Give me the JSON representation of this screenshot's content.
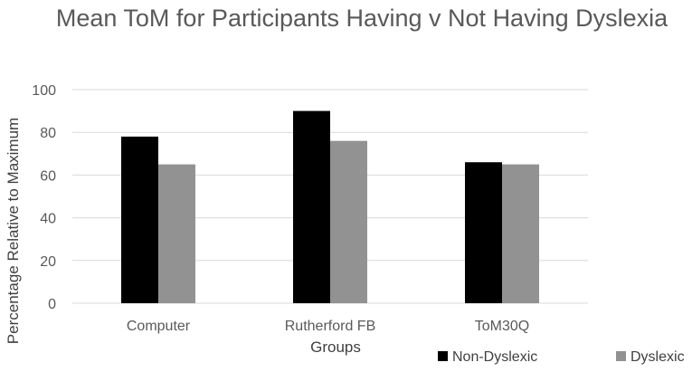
{
  "chart_data": {
    "type": "bar",
    "title": "Mean ToM for Participants Having v Not Having Dyslexia",
    "xlabel": "Groups",
    "ylabel": "Percentage Relative to Maximum",
    "categories": [
      "Computer",
      "Rutherford FB",
      "ToM30Q"
    ],
    "series": [
      {
        "name": "Non-Dyslexic",
        "color": "#000000",
        "values": [
          78,
          90,
          66
        ]
      },
      {
        "name": "Dyslexic",
        "color": "#929292",
        "values": [
          65,
          76,
          65
        ]
      }
    ],
    "ylim": [
      0,
      100
    ],
    "yticks": [
      0,
      20,
      40,
      60,
      80,
      100
    ],
    "grid": true,
    "legend_position": "bottom-right",
    "colors": {
      "text": "#595959",
      "grid": "#d9d9d9"
    }
  }
}
